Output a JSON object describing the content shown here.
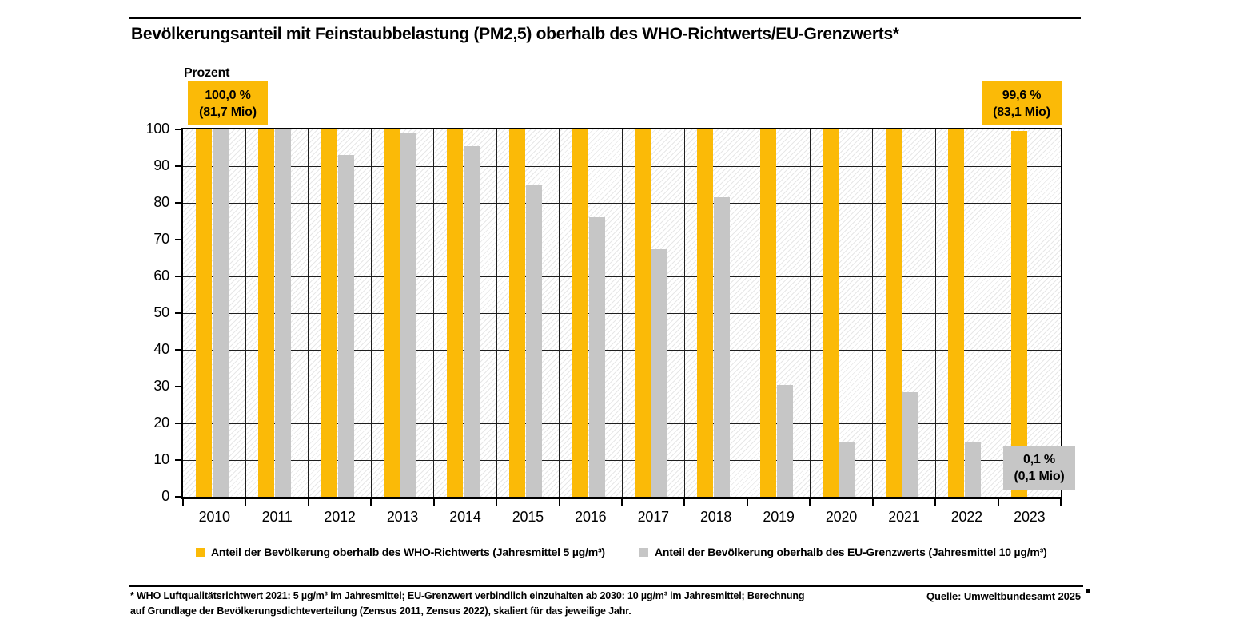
{
  "header": {
    "title": "Bevölkerungsanteil mit Feinstaubbelastung (PM2,5) oberhalb des WHO-Richtwerts/EU-Grenzwerts*"
  },
  "axis": {
    "y_title": "Prozent",
    "y_ticks": [
      0,
      10,
      20,
      30,
      40,
      50,
      60,
      70,
      80,
      90,
      100
    ],
    "x_labels": [
      "2010",
      "2011",
      "2012",
      "2013",
      "2014",
      "2015",
      "2016",
      "2017",
      "2018",
      "2019",
      "2020",
      "2021",
      "2022",
      "2023"
    ]
  },
  "callouts": {
    "who_2010": {
      "line1": "100,0 %",
      "line2": "(81,7 Mio)"
    },
    "who_2023": {
      "line1": "99,6 %",
      "line2": "(83,1 Mio)"
    },
    "eu_2023": {
      "line1": "0,1 %",
      "line2": "(0,1 Mio)"
    }
  },
  "legend": {
    "who_label": "Anteil der Bevölkerung oberhalb des WHO-Richtwerts (Jahresmittel 5 µg/m³)",
    "eu_label": "Anteil der Bevölkerung oberhalb des EU-Grenzwerts (Jahresmittel 10 µg/m³)"
  },
  "footer": {
    "footnote_line1": "* WHO Luftqualitätsrichtwert 2021: 5 µg/m³ im Jahresmittel; EU-Grenzwert verbindlich einzuhalten ab 2030: 10 µg/m³ im Jahresmittel; Berechnung",
    "footnote_line2": "auf Grundlage der Bevölkerungsdichteverteilung (Zensus 2011, Zensus 2022), skaliert für das jeweilige Jahr.",
    "source": "Quelle: Umweltbundesamt 2025"
  },
  "colors": {
    "who_yellow": "#FBBA07",
    "eu_gray": "#C6C6C6",
    "grid": "#1F1F1F",
    "axis": "#000000",
    "hatch": "#E7E7E7"
  },
  "chart_data": {
    "type": "bar",
    "title": "Bevölkerungsanteil mit Feinstaubbelastung (PM2,5) oberhalb des WHO-Richtwerts/EU-Grenzwerts*",
    "xlabel": "",
    "ylabel": "Prozent",
    "ylim": [
      0,
      100
    ],
    "grid": true,
    "legend_position": "bottom",
    "categories": [
      "2010",
      "2011",
      "2012",
      "2013",
      "2014",
      "2015",
      "2016",
      "2017",
      "2018",
      "2019",
      "2020",
      "2021",
      "2022",
      "2023"
    ],
    "series": [
      {
        "name": "Anteil der Bevölkerung oberhalb des WHO-Richtwerts (Jahresmittel 5 µg/m³)",
        "color": "#FBBA07",
        "values": [
          100,
          100,
          100,
          100,
          100,
          100,
          100,
          100,
          100,
          100,
          100,
          100,
          100,
          99.6
        ]
      },
      {
        "name": "Anteil der Bevölkerung oberhalb des EU-Grenzwerts (Jahresmittel 10 µg/m³)",
        "color": "#C6C6C6",
        "values": [
          100,
          100,
          93,
          99,
          95.5,
          85,
          76,
          67.5,
          81.5,
          30.5,
          15,
          28.5,
          15,
          0.1
        ]
      }
    ],
    "annotations": [
      {
        "target": "WHO 2010",
        "text": "100,0 % (81,7 Mio)"
      },
      {
        "target": "WHO 2023",
        "text": "99,6 % (83,1 Mio)"
      },
      {
        "target": "EU 2023",
        "text": "0,1 % (0,1 Mio)"
      }
    ]
  }
}
